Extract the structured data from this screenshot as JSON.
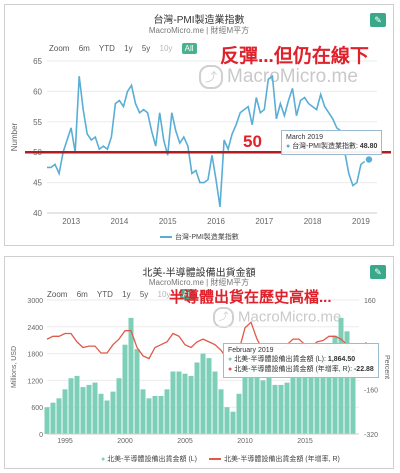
{
  "toolbar": {
    "zoom_label": "Zoom",
    "ranges": [
      "6m",
      "YTD",
      "1y",
      "5y",
      "10y",
      "All"
    ],
    "active_range": "All",
    "disabled_ranges": [
      "10y"
    ]
  },
  "panel1": {
    "title": "台灣-PMI製造業指數",
    "subtitle": "MacroMicro.me | 財經M平方",
    "headline": "反彈...但仍在線下",
    "watermark": "MacroMicro.me",
    "ref_label": "50",
    "tooltip": {
      "date": "March 2019",
      "series": "台灣-PMI製造業指數",
      "value": "48.80"
    },
    "colors": {
      "line": "#5aaed6",
      "refline": "#b01c22",
      "headline": "#e0202a"
    }
  },
  "panel2": {
    "title": "北美-半導體設備出貨金額",
    "subtitle": "MacroMicro.me | 財經M平方",
    "headline": "半導體出貨在歷史高檔...",
    "watermark": "MacroMicro.me",
    "tooltip": {
      "date": "February 2019",
      "row1_label": "北美-半導體設備出貨金額 (L):",
      "row1_value": "1,864.50",
      "row2_label": "北美-半導體設備出貨金額 (年增率, R):",
      "row2_value": "-22.88"
    },
    "colors": {
      "bars": "#7ecfb7",
      "line": "#e05a4a",
      "headline": "#e0202a"
    }
  },
  "chart_data": [
    {
      "type": "line",
      "title": "台灣-PMI製造業指數",
      "ylabel": "Number",
      "ylim": [
        40,
        65
      ],
      "yticks": [
        40,
        45,
        50,
        55,
        60,
        65
      ],
      "xticks": [
        "2013",
        "2014",
        "2015",
        "2016",
        "2017",
        "2018",
        "2019"
      ],
      "x_range": [
        "2012-07",
        "2019-05"
      ],
      "grid": true,
      "legend_position": "bottom",
      "reference_line": 50,
      "series": [
        {
          "name": "台灣-PMI製造業指數",
          "x": [
            "2012-07",
            "2012-08",
            "2012-09",
            "2012-10",
            "2012-11",
            "2012-12",
            "2013-01",
            "2013-02",
            "2013-03",
            "2013-04",
            "2013-05",
            "2013-06",
            "2013-07",
            "2013-08",
            "2013-09",
            "2013-10",
            "2013-11",
            "2013-12",
            "2014-01",
            "2014-02",
            "2014-03",
            "2014-04",
            "2014-05",
            "2014-06",
            "2014-07",
            "2014-08",
            "2014-09",
            "2014-10",
            "2014-11",
            "2014-12",
            "2015-01",
            "2015-02",
            "2015-03",
            "2015-04",
            "2015-05",
            "2015-06",
            "2015-07",
            "2015-08",
            "2015-09",
            "2015-10",
            "2015-11",
            "2015-12",
            "2016-01",
            "2016-02",
            "2016-03",
            "2016-04",
            "2016-05",
            "2016-06",
            "2016-07",
            "2016-08",
            "2016-09",
            "2016-10",
            "2016-11",
            "2016-12",
            "2017-01",
            "2017-02",
            "2017-03",
            "2017-04",
            "2017-05",
            "2017-06",
            "2017-07",
            "2017-08",
            "2017-09",
            "2017-10",
            "2017-11",
            "2017-12",
            "2018-01",
            "2018-02",
            "2018-03",
            "2018-04",
            "2018-05",
            "2018-06",
            "2018-07",
            "2018-08",
            "2018-09",
            "2018-10",
            "2018-11",
            "2018-12",
            "2019-01",
            "2019-02",
            "2019-03"
          ],
          "values": [
            47.5,
            47.5,
            48.0,
            46.5,
            50.0,
            52.0,
            54.0,
            50.0,
            62.5,
            57.0,
            53.0,
            52.0,
            52.5,
            50.5,
            51.0,
            50.5,
            52.5,
            58.0,
            58.5,
            57.5,
            60.0,
            61.0,
            58.0,
            56.5,
            57.0,
            56.5,
            53.5,
            51.0,
            56.5,
            52.0,
            49.5,
            56.5,
            53.5,
            51.5,
            52.5,
            51.0,
            46.5,
            47.0,
            45.0,
            45.0,
            45.5,
            49.5,
            45.5,
            41.0,
            52.0,
            50.5,
            53.0,
            54.5,
            56.5,
            57.0,
            57.5,
            54.5,
            59.0,
            56.5,
            57.0,
            62.0,
            62.5,
            55.5,
            58.0,
            56.0,
            58.5,
            60.5,
            56.0,
            58.5,
            59.0,
            58.0,
            57.5,
            57.0,
            59.5,
            57.5,
            56.5,
            55.5,
            54.0,
            53.5,
            50.0,
            46.5,
            44.5,
            45.0,
            48.0,
            48.5,
            48.8
          ]
        }
      ]
    },
    {
      "type": "bar",
      "title": "北美-半導體設備出貨金額",
      "ylabel": "Millions, USD",
      "y2label": "Percent",
      "ylim": [
        0,
        3000
      ],
      "yticks": [
        0,
        600,
        1200,
        1800,
        2400,
        3000
      ],
      "y2lim": [
        -320,
        160
      ],
      "y2ticks": [
        -320,
        -160,
        0,
        160
      ],
      "xticks": [
        "1995",
        "2000",
        "2005",
        "2010",
        "2015"
      ],
      "x_range": [
        1993.5,
        2019.5
      ],
      "grid": true,
      "legend_position": "bottom",
      "series": [
        {
          "name": "北美-半導體設備出貨金額 (L)",
          "x": [
            1993.5,
            1994,
            1994.5,
            1995,
            1995.5,
            1996,
            1996.5,
            1997,
            1997.5,
            1998,
            1998.5,
            1999,
            1999.5,
            2000,
            2000.5,
            2001,
            2001.5,
            2002,
            2002.5,
            2003,
            2003.5,
            2004,
            2004.5,
            2005,
            2005.5,
            2006,
            2006.5,
            2007,
            2007.5,
            2008,
            2008.5,
            2009,
            2009.5,
            2010,
            2010.5,
            2011,
            2011.5,
            2012,
            2012.5,
            2013,
            2013.5,
            2014,
            2014.5,
            2015,
            2015.5,
            2016,
            2016.5,
            2017,
            2017.5,
            2018,
            2018.5,
            2019
          ],
          "values": [
            600,
            700,
            800,
            1000,
            1250,
            1300,
            1050,
            1100,
            1150,
            900,
            750,
            950,
            1250,
            2000,
            2600,
            1900,
            1000,
            800,
            850,
            850,
            1000,
            1400,
            1400,
            1350,
            1300,
            1600,
            1800,
            1700,
            1400,
            1000,
            600,
            500,
            900,
            1500,
            1700,
            1500,
            1200,
            1300,
            1100,
            1100,
            1150,
            1300,
            1450,
            1400,
            1300,
            1500,
            1650,
            2000,
            2200,
            2600,
            2300,
            1864.5
          ]
        },
        {
          "name": "北美-半導體設備出貨金額 (年增率, R)",
          "type": "line",
          "axis": "right",
          "x": [
            1993.5,
            1994,
            1994.5,
            1995,
            1995.5,
            1996,
            1996.5,
            1997,
            1997.5,
            1998,
            1998.5,
            1999,
            1999.5,
            2000,
            2000.5,
            2001,
            2001.5,
            2002,
            2002.5,
            2003,
            2003.5,
            2004,
            2004.5,
            2005,
            2005.5,
            2006,
            2006.5,
            2007,
            2007.5,
            2008,
            2008.5,
            2009,
            2009.5,
            2010,
            2010.5,
            2011,
            2011.5,
            2012,
            2012.5,
            2013,
            2013.5,
            2014,
            2014.5,
            2015,
            2015.5,
            2016,
            2016.5,
            2017,
            2017.5,
            2018,
            2018.5,
            2019
          ],
          "values": [
            20,
            30,
            30,
            40,
            40,
            10,
            -10,
            -5,
            -5,
            -30,
            -30,
            0,
            20,
            50,
            50,
            -10,
            -40,
            -50,
            -10,
            0,
            10,
            40,
            30,
            0,
            -10,
            10,
            20,
            10,
            0,
            -20,
            -50,
            -70,
            -20,
            60,
            80,
            20,
            -20,
            0,
            -10,
            -20,
            0,
            20,
            20,
            0,
            -10,
            10,
            15,
            30,
            30,
            20,
            0,
            -22.88
          ]
        }
      ]
    }
  ]
}
